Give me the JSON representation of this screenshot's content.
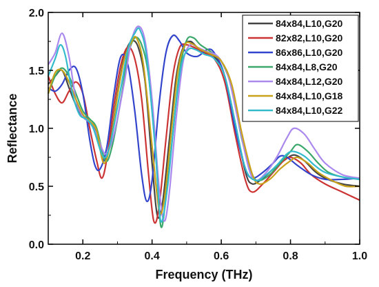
{
  "chart_data": {
    "type": "line",
    "title": "",
    "xlabel": "Frequency (THz)",
    "ylabel": "Reflectance",
    "xlim": [
      0.1,
      1.0
    ],
    "ylim": [
      0.0,
      2.0
    ],
    "xticks": [
      0.2,
      0.4,
      0.6,
      0.8,
      1.0
    ],
    "xtick_labels": [
      "0.2",
      "0.4",
      "0.6",
      "0.8",
      "1.0"
    ],
    "yticks": [
      0.0,
      0.5,
      1.0,
      1.5,
      2.0
    ],
    "ytick_labels": [
      "0.0",
      "0.5",
      "1.0",
      "1.5",
      "2.0"
    ],
    "grid": false,
    "legend_position": "top-right",
    "series": [
      {
        "name": "84x84,L10,G20",
        "color": "#444444",
        "points": [
          [
            0.1,
            1.38
          ],
          [
            0.12,
            1.45
          ],
          [
            0.14,
            1.5
          ],
          [
            0.16,
            1.35
          ],
          [
            0.18,
            1.2
          ],
          [
            0.2,
            1.1
          ],
          [
            0.22,
            1.05
          ],
          [
            0.24,
            0.95
          ],
          [
            0.26,
            0.72
          ],
          [
            0.28,
            0.9
          ],
          [
            0.3,
            1.3
          ],
          [
            0.32,
            1.62
          ],
          [
            0.34,
            1.75
          ],
          [
            0.36,
            1.7
          ],
          [
            0.38,
            1.4
          ],
          [
            0.4,
            0.7
          ],
          [
            0.415,
            0.25
          ],
          [
            0.43,
            0.35
          ],
          [
            0.45,
            0.9
          ],
          [
            0.47,
            1.45
          ],
          [
            0.49,
            1.7
          ],
          [
            0.51,
            1.75
          ],
          [
            0.53,
            1.7
          ],
          [
            0.55,
            1.66
          ],
          [
            0.58,
            1.62
          ],
          [
            0.61,
            1.45
          ],
          [
            0.64,
            1.05
          ],
          [
            0.67,
            0.62
          ],
          [
            0.69,
            0.52
          ],
          [
            0.72,
            0.57
          ],
          [
            0.75,
            0.65
          ],
          [
            0.78,
            0.72
          ],
          [
            0.81,
            0.77
          ],
          [
            0.84,
            0.72
          ],
          [
            0.87,
            0.63
          ],
          [
            0.9,
            0.57
          ],
          [
            0.95,
            0.52
          ],
          [
            1.0,
            0.5
          ]
        ]
      },
      {
        "name": "82x82,L10,G20",
        "color": "#cc3333",
        "points": [
          [
            0.1,
            1.45
          ],
          [
            0.12,
            1.3
          ],
          [
            0.14,
            1.22
          ],
          [
            0.16,
            1.32
          ],
          [
            0.18,
            1.4
          ],
          [
            0.2,
            1.3
          ],
          [
            0.22,
            1.0
          ],
          [
            0.24,
            0.72
          ],
          [
            0.255,
            0.57
          ],
          [
            0.27,
            0.75
          ],
          [
            0.29,
            1.2
          ],
          [
            0.31,
            1.55
          ],
          [
            0.33,
            1.7
          ],
          [
            0.35,
            1.6
          ],
          [
            0.37,
            1.25
          ],
          [
            0.39,
            0.6
          ],
          [
            0.405,
            0.2
          ],
          [
            0.42,
            0.32
          ],
          [
            0.44,
            0.9
          ],
          [
            0.46,
            1.45
          ],
          [
            0.48,
            1.7
          ],
          [
            0.5,
            1.72
          ],
          [
            0.52,
            1.7
          ],
          [
            0.55,
            1.65
          ],
          [
            0.58,
            1.6
          ],
          [
            0.61,
            1.4
          ],
          [
            0.64,
            0.95
          ],
          [
            0.67,
            0.55
          ],
          [
            0.69,
            0.45
          ],
          [
            0.72,
            0.52
          ],
          [
            0.75,
            0.62
          ],
          [
            0.78,
            0.72
          ],
          [
            0.8,
            0.75
          ],
          [
            0.83,
            0.7
          ],
          [
            0.86,
            0.6
          ],
          [
            0.9,
            0.52
          ],
          [
            0.95,
            0.45
          ],
          [
            1.0,
            0.38
          ]
        ]
      },
      {
        "name": "86x86,L10,G20",
        "color": "#3344cc",
        "points": [
          [
            0.1,
            1.35
          ],
          [
            0.12,
            1.32
          ],
          [
            0.14,
            1.38
          ],
          [
            0.16,
            1.5
          ],
          [
            0.18,
            1.52
          ],
          [
            0.2,
            1.3
          ],
          [
            0.22,
            0.9
          ],
          [
            0.235,
            0.68
          ],
          [
            0.25,
            0.65
          ],
          [
            0.27,
            0.85
          ],
          [
            0.29,
            1.3
          ],
          [
            0.31,
            1.62
          ],
          [
            0.33,
            1.55
          ],
          [
            0.35,
            1.15
          ],
          [
            0.37,
            0.6
          ],
          [
            0.385,
            0.37
          ],
          [
            0.4,
            0.55
          ],
          [
            0.42,
            1.2
          ],
          [
            0.44,
            1.65
          ],
          [
            0.46,
            1.8
          ],
          [
            0.48,
            1.75
          ],
          [
            0.5,
            1.65
          ],
          [
            0.53,
            1.62
          ],
          [
            0.56,
            1.68
          ],
          [
            0.58,
            1.65
          ],
          [
            0.61,
            1.45
          ],
          [
            0.64,
            1.0
          ],
          [
            0.67,
            0.65
          ],
          [
            0.69,
            0.57
          ],
          [
            0.72,
            0.62
          ],
          [
            0.75,
            0.7
          ],
          [
            0.77,
            0.76
          ],
          [
            0.79,
            0.75
          ],
          [
            0.82,
            0.68
          ],
          [
            0.86,
            0.6
          ],
          [
            0.9,
            0.56
          ],
          [
            0.95,
            0.56
          ],
          [
            1.0,
            0.57
          ]
        ]
      },
      {
        "name": "84x84,L8,G20",
        "color": "#3aa86a",
        "points": [
          [
            0.1,
            1.3
          ],
          [
            0.12,
            1.45
          ],
          [
            0.14,
            1.52
          ],
          [
            0.16,
            1.45
          ],
          [
            0.18,
            1.3
          ],
          [
            0.2,
            1.15
          ],
          [
            0.22,
            1.08
          ],
          [
            0.24,
            1.0
          ],
          [
            0.265,
            0.72
          ],
          [
            0.285,
            0.85
          ],
          [
            0.31,
            1.25
          ],
          [
            0.33,
            1.62
          ],
          [
            0.35,
            1.78
          ],
          [
            0.37,
            1.72
          ],
          [
            0.39,
            1.45
          ],
          [
            0.41,
            0.8
          ],
          [
            0.425,
            0.16
          ],
          [
            0.44,
            0.4
          ],
          [
            0.46,
            0.95
          ],
          [
            0.48,
            1.5
          ],
          [
            0.5,
            1.76
          ],
          [
            0.52,
            1.78
          ],
          [
            0.54,
            1.72
          ],
          [
            0.57,
            1.66
          ],
          [
            0.6,
            1.58
          ],
          [
            0.63,
            1.35
          ],
          [
            0.66,
            0.9
          ],
          [
            0.69,
            0.6
          ],
          [
            0.71,
            0.55
          ],
          [
            0.74,
            0.6
          ],
          [
            0.77,
            0.7
          ],
          [
            0.8,
            0.8
          ],
          [
            0.82,
            0.86
          ],
          [
            0.85,
            0.8
          ],
          [
            0.88,
            0.7
          ],
          [
            0.91,
            0.62
          ],
          [
            0.95,
            0.58
          ],
          [
            1.0,
            0.56
          ]
        ]
      },
      {
        "name": "84x84,L12,G20",
        "color": "#aa88ee",
        "points": [
          [
            0.1,
            1.55
          ],
          [
            0.12,
            1.65
          ],
          [
            0.14,
            1.82
          ],
          [
            0.16,
            1.62
          ],
          [
            0.18,
            1.25
          ],
          [
            0.2,
            1.1
          ],
          [
            0.22,
            1.05
          ],
          [
            0.24,
            0.95
          ],
          [
            0.265,
            0.78
          ],
          [
            0.29,
            0.95
          ],
          [
            0.32,
            1.4
          ],
          [
            0.34,
            1.75
          ],
          [
            0.36,
            1.88
          ],
          [
            0.38,
            1.75
          ],
          [
            0.4,
            1.25
          ],
          [
            0.42,
            0.5
          ],
          [
            0.435,
            0.2
          ],
          [
            0.45,
            0.45
          ],
          [
            0.47,
            1.1
          ],
          [
            0.49,
            1.58
          ],
          [
            0.51,
            1.72
          ],
          [
            0.53,
            1.7
          ],
          [
            0.56,
            1.66
          ],
          [
            0.59,
            1.62
          ],
          [
            0.62,
            1.45
          ],
          [
            0.65,
            1.05
          ],
          [
            0.68,
            0.65
          ],
          [
            0.7,
            0.55
          ],
          [
            0.73,
            0.62
          ],
          [
            0.76,
            0.75
          ],
          [
            0.79,
            0.92
          ],
          [
            0.81,
            1.0
          ],
          [
            0.84,
            0.95
          ],
          [
            0.87,
            0.82
          ],
          [
            0.9,
            0.7
          ],
          [
            0.95,
            0.6
          ],
          [
            1.0,
            0.57
          ]
        ]
      },
      {
        "name": "84x84,L10,G18",
        "color": "#c8a21a",
        "points": [
          [
            0.1,
            1.3
          ],
          [
            0.12,
            1.48
          ],
          [
            0.14,
            1.5
          ],
          [
            0.16,
            1.4
          ],
          [
            0.18,
            1.25
          ],
          [
            0.2,
            1.12
          ],
          [
            0.22,
            1.06
          ],
          [
            0.24,
            0.98
          ],
          [
            0.26,
            0.7
          ],
          [
            0.28,
            0.88
          ],
          [
            0.3,
            1.28
          ],
          [
            0.32,
            1.6
          ],
          [
            0.34,
            1.74
          ],
          [
            0.355,
            1.78
          ],
          [
            0.375,
            1.55
          ],
          [
            0.4,
            0.85
          ],
          [
            0.42,
            0.3
          ],
          [
            0.435,
            0.38
          ],
          [
            0.455,
            0.95
          ],
          [
            0.475,
            1.5
          ],
          [
            0.495,
            1.72
          ],
          [
            0.515,
            1.73
          ],
          [
            0.54,
            1.68
          ],
          [
            0.57,
            1.64
          ],
          [
            0.6,
            1.58
          ],
          [
            0.63,
            1.38
          ],
          [
            0.66,
            0.95
          ],
          [
            0.69,
            0.6
          ],
          [
            0.71,
            0.52
          ],
          [
            0.74,
            0.56
          ],
          [
            0.77,
            0.65
          ],
          [
            0.8,
            0.72
          ],
          [
            0.82,
            0.75
          ],
          [
            0.85,
            0.7
          ],
          [
            0.88,
            0.62
          ],
          [
            0.92,
            0.55
          ],
          [
            0.96,
            0.5
          ],
          [
            1.0,
            0.5
          ]
        ]
      },
      {
        "name": "84x84,L10,G22",
        "color": "#33bbcc",
        "points": [
          [
            0.1,
            1.45
          ],
          [
            0.12,
            1.6
          ],
          [
            0.135,
            1.72
          ],
          [
            0.15,
            1.62
          ],
          [
            0.17,
            1.3
          ],
          [
            0.19,
            1.12
          ],
          [
            0.21,
            1.08
          ],
          [
            0.23,
            1.0
          ],
          [
            0.26,
            0.75
          ],
          [
            0.28,
            0.88
          ],
          [
            0.31,
            1.35
          ],
          [
            0.33,
            1.68
          ],
          [
            0.35,
            1.82
          ],
          [
            0.365,
            1.85
          ],
          [
            0.385,
            1.6
          ],
          [
            0.41,
            0.8
          ],
          [
            0.425,
            0.2
          ],
          [
            0.445,
            0.5
          ],
          [
            0.465,
            1.1
          ],
          [
            0.485,
            1.55
          ],
          [
            0.505,
            1.68
          ],
          [
            0.525,
            1.68
          ],
          [
            0.55,
            1.64
          ],
          [
            0.58,
            1.6
          ],
          [
            0.61,
            1.45
          ],
          [
            0.64,
            1.05
          ],
          [
            0.67,
            0.65
          ],
          [
            0.7,
            0.55
          ],
          [
            0.73,
            0.6
          ],
          [
            0.76,
            0.68
          ],
          [
            0.79,
            0.78
          ],
          [
            0.81,
            0.8
          ],
          [
            0.84,
            0.76
          ],
          [
            0.87,
            0.68
          ],
          [
            0.9,
            0.62
          ],
          [
            0.95,
            0.58
          ],
          [
            1.0,
            0.56
          ]
        ]
      }
    ]
  }
}
